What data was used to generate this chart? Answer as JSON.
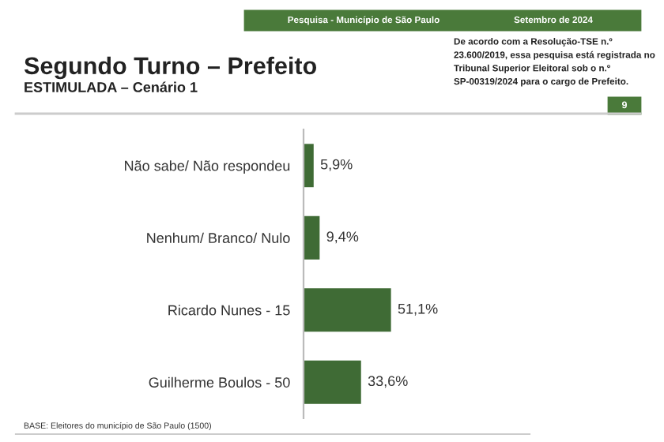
{
  "chart_data": {
    "type": "bar",
    "orientation": "horizontal",
    "title": "Segundo Turno – Prefeito",
    "subtitle": "ESTIMULADA – Cenário 1",
    "categories": [
      "Não sabe/ Não respondeu",
      "Nenhum/ Branco/ Nulo",
      "Ricardo Nunes - 15",
      "Guilherme Boulos - 50"
    ],
    "values": [
      5.9,
      9.4,
      51.1,
      33.6
    ],
    "color": "#3f6b35",
    "value_labels": [
      "5,9%",
      "9,4%",
      "51,1%",
      "33,6%"
    ],
    "annotations": [
      "Pesquisa - Município de São Paulo",
      "Setembro de 2024",
      "De acordo com a Resolução-TSE n.º 23.600/2019, essa pesquisa está registrada no Tribunal Superior Eleitoral sob o n.º SP-00319/2024 para o cargo de Prefeito.",
      "9",
      "BASE: Eleitores do município de São Paulo (1500)"
    ],
    "grid": false,
    "legend": false
  }
}
